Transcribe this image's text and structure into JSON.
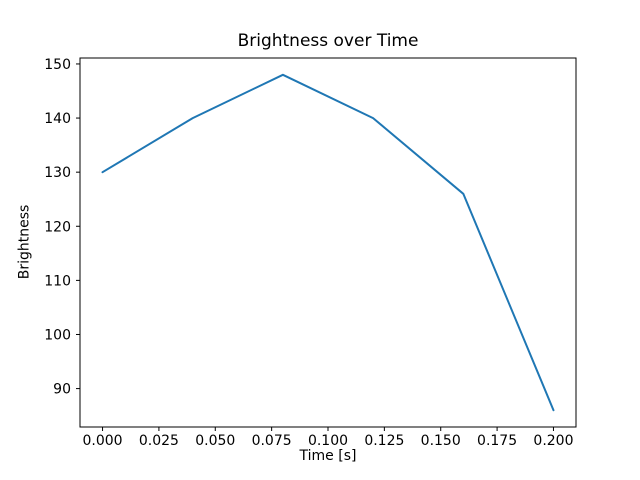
{
  "chart_data": {
    "type": "line",
    "title": "Brightness over Time",
    "xlabel": "Time [s]",
    "ylabel": "Brightness",
    "x": [
      0.0,
      0.04,
      0.08,
      0.12,
      0.16,
      0.2
    ],
    "y": [
      130,
      140,
      148,
      140,
      126,
      86
    ],
    "series": [
      {
        "name": "brightness",
        "color": "#1f77b4",
        "x": [
          0.0,
          0.04,
          0.08,
          0.12,
          0.16,
          0.2
        ],
        "y": [
          130,
          140,
          148,
          140,
          126,
          86
        ]
      }
    ],
    "xlim": [
      -0.01,
      0.21
    ],
    "ylim": [
      82.9,
      151.1
    ],
    "xticks": [
      {
        "value": 0.0,
        "label": "0.000"
      },
      {
        "value": 0.025,
        "label": "0.025"
      },
      {
        "value": 0.05,
        "label": "0.050"
      },
      {
        "value": 0.075,
        "label": "0.075"
      },
      {
        "value": 0.1,
        "label": "0.100"
      },
      {
        "value": 0.125,
        "label": "0.125"
      },
      {
        "value": 0.15,
        "label": "0.150"
      },
      {
        "value": 0.175,
        "label": "0.175"
      },
      {
        "value": 0.2,
        "label": "0.200"
      }
    ],
    "yticks": [
      {
        "value": 90,
        "label": "90"
      },
      {
        "value": 100,
        "label": "100"
      },
      {
        "value": 110,
        "label": "110"
      },
      {
        "value": 120,
        "label": "120"
      },
      {
        "value": 130,
        "label": "130"
      },
      {
        "value": 140,
        "label": "140"
      },
      {
        "value": 150,
        "label": "150"
      }
    ],
    "grid": false,
    "legend": "none",
    "colors": {
      "line": "#1f77b4",
      "spine": "#000000",
      "text": "#000000",
      "background": "#ffffff"
    }
  }
}
